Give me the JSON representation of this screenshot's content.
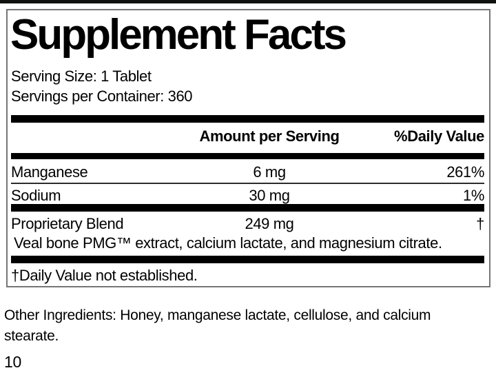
{
  "colors": {
    "text": "#000000",
    "bar": "#000000",
    "panel_border": "#757575",
    "background": "#ffffff"
  },
  "panel": {
    "title": "Supplement Facts",
    "serving_size": "Serving Size: 1 Tablet",
    "servings_per_container": "Servings per Container: 360",
    "columns": {
      "amount": "Amount per Serving",
      "daily_value": "%Daily Value"
    },
    "rows": [
      {
        "name": "Manganese",
        "amount": "6 mg",
        "dv": "261%"
      },
      {
        "name": "Sodium",
        "amount": "30 mg",
        "dv": "1%"
      },
      {
        "name": "Proprietary Blend",
        "amount": "249 mg",
        "dv": "†"
      }
    ],
    "blend_description": "Veal bone PMG™ extract, calcium lactate, and magnesium citrate.",
    "footnote": "†Daily Value not established."
  },
  "other_ingredients": "Other Ingredients: Honey, manganese lactate, cellulose, and calcium stearate.",
  "page_number": "10"
}
